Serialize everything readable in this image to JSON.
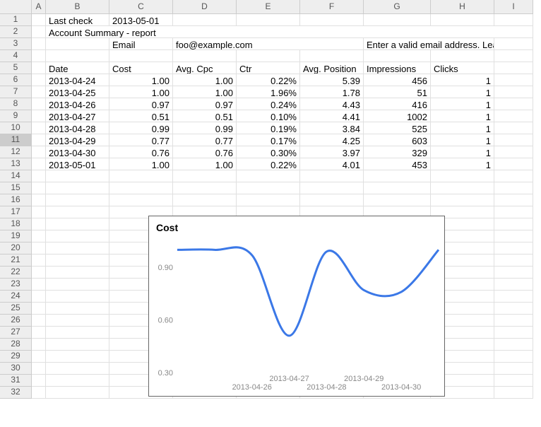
{
  "columns": [
    "",
    "A",
    "B",
    "C",
    "D",
    "E",
    "F",
    "G",
    "H",
    "I"
  ],
  "row1": {
    "b": "Last check",
    "c": "2013-05-01"
  },
  "row2": {
    "title": "Account Summary - report"
  },
  "row3": {
    "c": "Email",
    "d": "foo@example.com",
    "g": "Enter a valid email address. Leave blank for no emails."
  },
  "headers": {
    "b": "Date",
    "c": "Cost",
    "d": "Avg. Cpc",
    "e": "Ctr",
    "f": "Avg. Position",
    "g": "Impressions",
    "h": "Clicks"
  },
  "data_rows": [
    {
      "b": "2013-04-24",
      "c": "1.00",
      "d": "1.00",
      "e": "0.22%",
      "f": "5.39",
      "g": "456",
      "h": "1"
    },
    {
      "b": "2013-04-25",
      "c": "1.00",
      "d": "1.00",
      "e": "1.96%",
      "f": "1.78",
      "g": "51",
      "h": "1"
    },
    {
      "b": "2013-04-26",
      "c": "0.97",
      "d": "0.97",
      "e": "0.24%",
      "f": "4.43",
      "g": "416",
      "h": "1"
    },
    {
      "b": "2013-04-27",
      "c": "0.51",
      "d": "0.51",
      "e": "0.10%",
      "f": "4.41",
      "g": "1002",
      "h": "1"
    },
    {
      "b": "2013-04-28",
      "c": "0.99",
      "d": "0.99",
      "e": "0.19%",
      "f": "3.84",
      "g": "525",
      "h": "1"
    },
    {
      "b": "2013-04-29",
      "c": "0.77",
      "d": "0.77",
      "e": "0.17%",
      "f": "4.25",
      "g": "603",
      "h": "1"
    },
    {
      "b": "2013-04-30",
      "c": "0.76",
      "d": "0.76",
      "e": "0.30%",
      "f": "3.97",
      "g": "329",
      "h": "1"
    },
    {
      "b": "2013-05-01",
      "c": "1.00",
      "d": "1.00",
      "e": "0.22%",
      "f": "4.01",
      "g": "453",
      "h": "1"
    }
  ],
  "chart": {
    "title": "Cost",
    "type": "line",
    "line_color": "#3b78e7",
    "line_width": 3,
    "yticks": [
      "0.30",
      "0.60",
      "0.90"
    ],
    "xlabels": [
      "2013-04-26",
      "2013-04-27",
      "2013-04-28",
      "2013-04-29",
      "2013-04-30"
    ],
    "values": [
      1.0,
      1.0,
      0.97,
      0.51,
      0.99,
      0.77,
      0.76,
      1.0
    ],
    "background_color": "#ffffff",
    "axis_color": "#cccccc",
    "text_color": "#888888",
    "font_size": 11
  }
}
